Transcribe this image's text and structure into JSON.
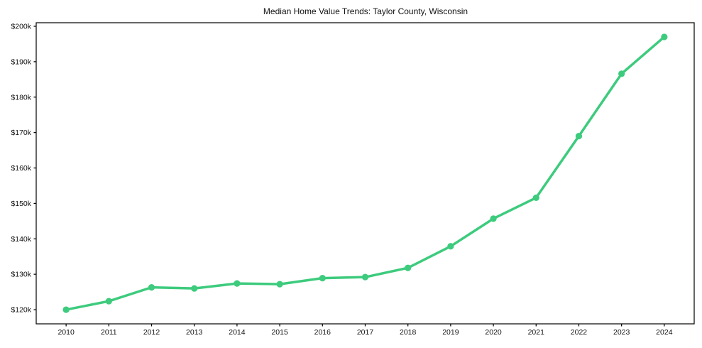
{
  "figure": {
    "title": "Median Home Value Trends: Taylor County, Wisconsin",
    "background_color": "#ffffff"
  },
  "chart_data": {
    "type": "line",
    "title": "Median Home Value Trends: Taylor County, Wisconsin",
    "xlabel": "",
    "ylabel": "",
    "x": [
      2010,
      2011,
      2012,
      2013,
      2014,
      2015,
      2016,
      2017,
      2018,
      2019,
      2020,
      2021,
      2022,
      2023,
      2024
    ],
    "x_tick_labels": [
      "2010",
      "2011",
      "2012",
      "2013",
      "2014",
      "2015",
      "2016",
      "2017",
      "2018",
      "2019",
      "2020",
      "2021",
      "2022",
      "2023",
      "2024"
    ],
    "series": [
      {
        "name": "Median Home Value",
        "values": [
          120000,
          122400,
          126300,
          126000,
          127400,
          127200,
          128900,
          129200,
          131800,
          137900,
          145700,
          151600,
          169000,
          186600,
          197000
        ]
      }
    ],
    "y_ticks": [
      120000,
      130000,
      140000,
      150000,
      160000,
      170000,
      180000,
      190000,
      200000
    ],
    "y_tick_labels": [
      "$120k",
      "$130k",
      "$140k",
      "$150k",
      "$160k",
      "$170k",
      "$180k",
      "$190k",
      "$200k"
    ],
    "xlim": [
      2009.3,
      2024.7
    ],
    "ylim": [
      116000,
      201000
    ],
    "grid": false,
    "legend": "none",
    "line_color": "#3dcb7d",
    "marker": "circle",
    "axis_color": "#000000",
    "text_color": "#111111"
  }
}
